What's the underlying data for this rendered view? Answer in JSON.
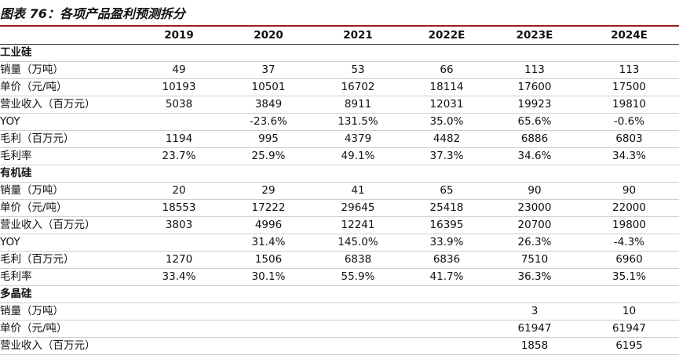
{
  "title": "图表 76：各项产品盈利预测拆分",
  "columns": [
    "",
    "2019",
    "2020",
    "2021",
    "2022E",
    "2023E",
    "2024E"
  ],
  "rows": [
    {
      "label": "工业硅",
      "section": true,
      "values": [
        "",
        "",
        "",
        "",
        "",
        ""
      ]
    },
    {
      "label": "销量（万吨）",
      "section": false,
      "values": [
        "49",
        "37",
        "53",
        "66",
        "113",
        "113"
      ]
    },
    {
      "label": "单价（元/吨）",
      "section": false,
      "values": [
        "10193",
        "10501",
        "16702",
        "18114",
        "17600",
        "17500"
      ]
    },
    {
      "label": "营业收入（百万元）",
      "section": false,
      "values": [
        "5038",
        "3849",
        "8911",
        "12031",
        "19923",
        "19810"
      ]
    },
    {
      "label": "YOY",
      "section": false,
      "values": [
        "",
        "-23.6%",
        "131.5%",
        "35.0%",
        "65.6%",
        "-0.6%"
      ]
    },
    {
      "label": "毛利（百万元）",
      "section": false,
      "values": [
        "1194",
        "995",
        "4379",
        "4482",
        "6886",
        "6803"
      ]
    },
    {
      "label": "毛利率",
      "section": false,
      "values": [
        "23.7%",
        "25.9%",
        "49.1%",
        "37.3%",
        "34.6%",
        "34.3%"
      ]
    },
    {
      "label": "有机硅",
      "section": true,
      "values": [
        "",
        "",
        "",
        "",
        "",
        ""
      ]
    },
    {
      "label": "销量（万吨）",
      "section": false,
      "values": [
        "20",
        "29",
        "41",
        "65",
        "90",
        "90"
      ]
    },
    {
      "label": "单价（元/吨）",
      "section": false,
      "values": [
        "18553",
        "17222",
        "29645",
        "25418",
        "23000",
        "22000"
      ]
    },
    {
      "label": "营业收入（百万元）",
      "section": false,
      "values": [
        "3803",
        "4996",
        "12241",
        "16395",
        "20700",
        "19800"
      ]
    },
    {
      "label": "YOY",
      "section": false,
      "values": [
        "",
        "31.4%",
        "145.0%",
        "33.9%",
        "26.3%",
        "-4.3%"
      ]
    },
    {
      "label": "毛利（百万元）",
      "section": false,
      "values": [
        "1270",
        "1506",
        "6838",
        "6836",
        "7510",
        "6960"
      ]
    },
    {
      "label": "毛利率",
      "section": false,
      "values": [
        "33.4%",
        "30.1%",
        "55.9%",
        "41.7%",
        "36.3%",
        "35.1%"
      ]
    },
    {
      "label": "多晶硅",
      "section": true,
      "values": [
        "",
        "",
        "",
        "",
        "",
        ""
      ]
    },
    {
      "label": "销量（万吨）",
      "section": false,
      "values": [
        "",
        "",
        "",
        "",
        "3",
        "10"
      ]
    },
    {
      "label": "单价（元/吨）",
      "section": false,
      "values": [
        "",
        "",
        "",
        "",
        "61947",
        "61947"
      ]
    },
    {
      "label": "营业收入（百万元）",
      "section": false,
      "values": [
        "",
        "",
        "",
        "",
        "1858",
        "6195"
      ]
    }
  ]
}
